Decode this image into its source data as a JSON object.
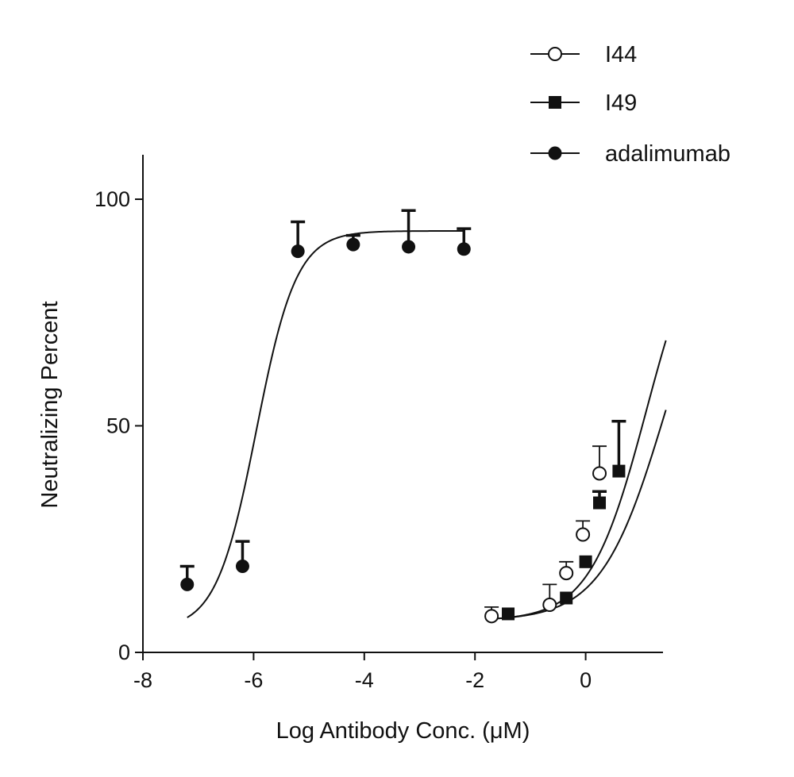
{
  "chart_data": {
    "type": "scatter",
    "title": "",
    "xlabel": "Log Antibody Conc. (μM)",
    "ylabel": "Neutralizing Percent",
    "xlim": [
      -8,
      1.5
    ],
    "ylim": [
      0,
      110
    ],
    "x_ticks": [
      "-8",
      "-6",
      "-4",
      "-2",
      "0"
    ],
    "y_ticks": [
      "0",
      "50",
      "100"
    ],
    "grid": false,
    "legend_position": "top-right",
    "series": [
      {
        "name": "I44",
        "marker": "open-circle",
        "points": [
          {
            "x": -1.7,
            "y": 8,
            "err": 2
          },
          {
            "x": -0.65,
            "y": 10.5,
            "err": 4.5
          },
          {
            "x": -0.35,
            "y": 17.5,
            "err": 2.5
          },
          {
            "x": -0.05,
            "y": 26,
            "err": 3
          },
          {
            "x": 0.25,
            "y": 39.5,
            "err": 6
          }
        ],
        "fit": {
          "bottom": 7,
          "top": 100,
          "logEC50": 1.1,
          "hill": 0.85
        }
      },
      {
        "name": "I49",
        "marker": "filled-square",
        "points": [
          {
            "x": -1.4,
            "y": 8.5,
            "err": 0
          },
          {
            "x": -0.35,
            "y": 12,
            "err": 0
          },
          {
            "x": 0.0,
            "y": 20,
            "err": 0
          },
          {
            "x": 0.25,
            "y": 33,
            "err": 2.5
          },
          {
            "x": 0.6,
            "y": 40,
            "err": 11
          }
        ],
        "fit": {
          "bottom": 7,
          "top": 100,
          "logEC50": 1.45,
          "hill": 0.75
        }
      },
      {
        "name": "adalimumab",
        "marker": "filled-circle",
        "points": [
          {
            "x": -7.2,
            "y": 15,
            "err": 4
          },
          {
            "x": -6.2,
            "y": 19,
            "err": 5.5
          },
          {
            "x": -5.2,
            "y": 88.5,
            "err": 6.5
          },
          {
            "x": -4.2,
            "y": 90,
            "err": 2
          },
          {
            "x": -3.2,
            "y": 89.5,
            "err": 8
          },
          {
            "x": -2.2,
            "y": 89,
            "err": 4.5
          }
        ],
        "fit": {
          "bottom": 5,
          "top": 93,
          "logEC50": -5.95,
          "hill": 1.2
        }
      }
    ]
  }
}
